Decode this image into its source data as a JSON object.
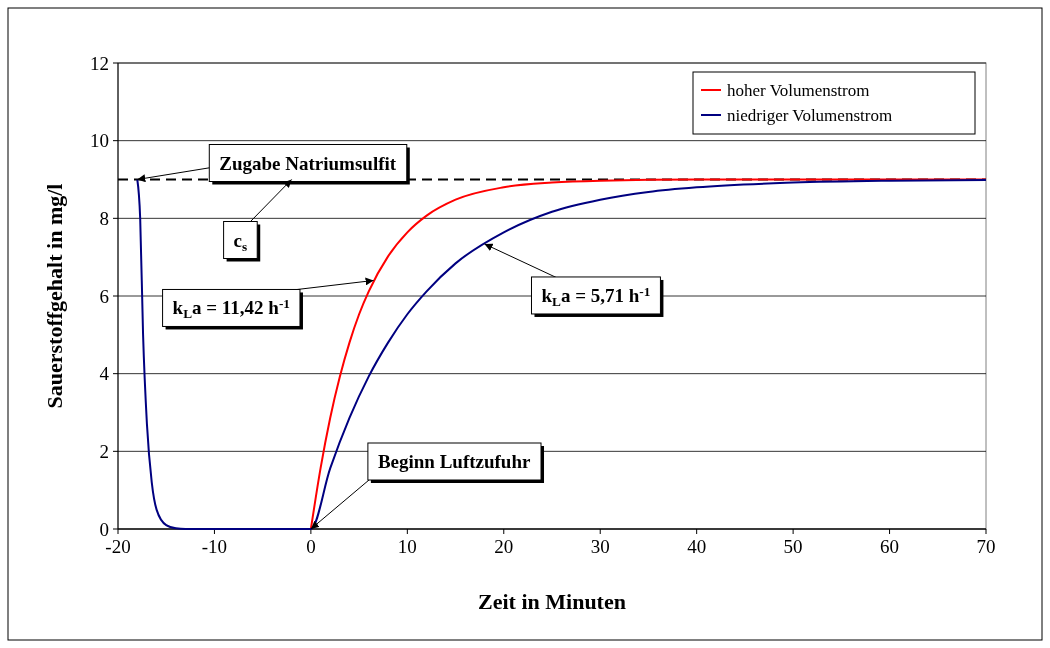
{
  "chart_data": {
    "type": "line",
    "xlabel": "Zeit in Minuten",
    "ylabel": "Sauerstoffgehalt in mg/l",
    "xlim": [
      -20,
      70
    ],
    "xticks": [
      -20,
      -10,
      0,
      10,
      20,
      30,
      40,
      50,
      60,
      70
    ],
    "ylim": [
      0,
      12
    ],
    "yticks": [
      0,
      2,
      4,
      6,
      8,
      10,
      12
    ],
    "grid": "y",
    "legend": "top right",
    "marker": "none",
    "line_style": "solid",
    "series": [
      {
        "name": "hoher Volumenstrom",
        "color": "#ff0000",
        "x": [
          0,
          1,
          2,
          3,
          4,
          5,
          6,
          8,
          10,
          12,
          15,
          20,
          25,
          30,
          40,
          50,
          70
        ],
        "values": [
          0,
          1.56,
          2.86,
          3.92,
          4.8,
          5.53,
          6.12,
          7.02,
          7.64,
          8.07,
          8.48,
          8.8,
          8.92,
          8.97,
          9,
          9,
          9
        ]
      },
      {
        "name": "niedriger Volumenstrom",
        "color": "#000080",
        "x": [
          -18,
          -17.7,
          -17.4,
          -17,
          -16.5,
          -16,
          -15,
          -14,
          -13,
          0,
          2,
          4,
          6,
          8,
          10,
          12,
          15,
          20,
          25,
          30,
          35,
          40,
          50,
          60,
          70
        ],
        "values": [
          9,
          8,
          5,
          2.7,
          1.2,
          0.5,
          0.1,
          0.02,
          0,
          0,
          1.56,
          2.86,
          3.93,
          4.8,
          5.53,
          6.12,
          6.84,
          7.64,
          8.17,
          8.48,
          8.68,
          8.8,
          8.92,
          8.97,
          8.99
        ]
      }
    ],
    "ref_lines": [
      {
        "axis": "y",
        "value": 9,
        "color": "#000000",
        "line_style": "dashed"
      }
    ],
    "annotations": [
      {
        "text": "Zugabe Natriumsulfit",
        "x": -18,
        "y": 9
      },
      {
        "text": "c$_{s}$",
        "x": -2,
        "y": 9
      },
      {
        "text": "k$_{L}$a = 11,42 h$^{-1}$",
        "x": 6.5,
        "y": 6.4
      },
      {
        "text": "k$_{L}$a = 5,71 h$^{-1}$",
        "x": 18,
        "y": 7.34
      },
      {
        "text": "Beginn Luftzufuhr",
        "x": 0,
        "y": 0
      }
    ]
  }
}
